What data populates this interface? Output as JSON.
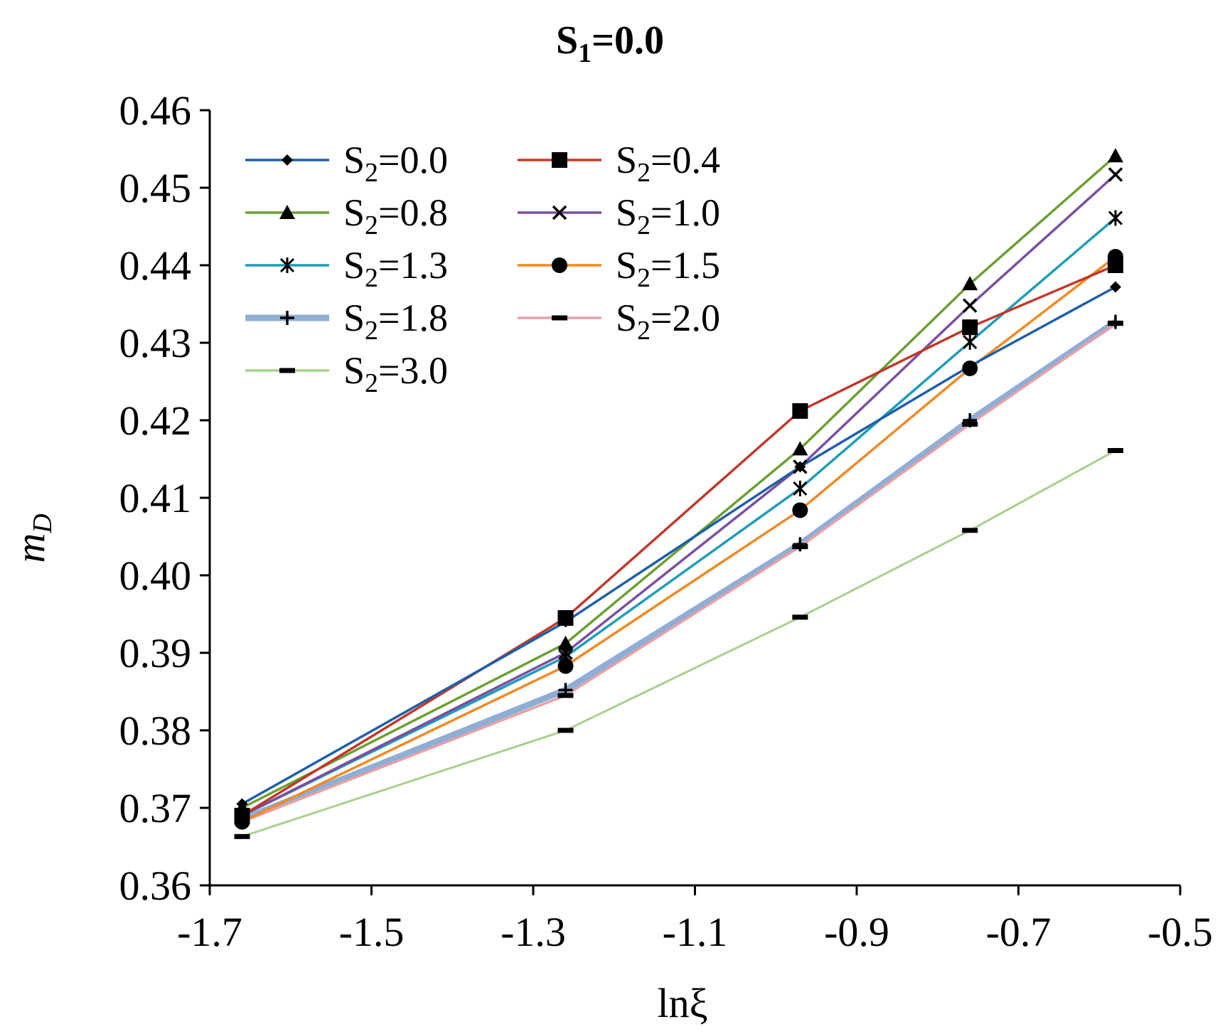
{
  "chart_data": {
    "type": "line",
    "title": {
      "main": "S",
      "sub": "1",
      "rest": "=0.0"
    },
    "xlabel": "lnξ",
    "ylabel": "m_D",
    "ylabel_main": "m",
    "ylabel_sub": "D",
    "xlim": [
      -1.7,
      -0.5
    ],
    "ylim": [
      0.36,
      0.46
    ],
    "xticks": [
      "-1.7",
      "-1.5",
      "-1.3",
      "-1.1",
      "-0.9",
      "-0.7",
      "-0.5"
    ],
    "xtick_values": [
      -1.7,
      -1.5,
      -1.3,
      -1.1,
      -0.9,
      -0.7,
      -0.5
    ],
    "yticks": [
      "0.36",
      "0.37",
      "0.38",
      "0.39",
      "0.40",
      "0.41",
      "0.42",
      "0.43",
      "0.44",
      "0.45",
      "0.46"
    ],
    "ytick_values": [
      0.36,
      0.37,
      0.38,
      0.39,
      0.4,
      0.41,
      0.42,
      0.43,
      0.44,
      0.45,
      0.46
    ],
    "grid": false,
    "legend_position": "top-left",
    "x": [
      -1.66,
      -1.26,
      -0.97,
      -0.76,
      -0.58
    ],
    "series": [
      {
        "name": "S2=0.0",
        "label_main": "S",
        "label_sub": "2",
        "label_rest": "=0.0",
        "color": "#1f5fa8",
        "marker": "diamond",
        "values": [
          0.3705,
          0.394,
          0.414,
          0.427,
          0.4372
        ]
      },
      {
        "name": "S2=0.4",
        "label_main": "S",
        "label_sub": "2",
        "label_rest": "=0.4",
        "color": "#c0392b",
        "marker": "square",
        "values": [
          0.369,
          0.3945,
          0.4212,
          0.432,
          0.44
        ]
      },
      {
        "name": "S2=0.8",
        "label_main": "S",
        "label_sub": "2",
        "label_rest": "=0.8",
        "color": "#6aa033",
        "marker": "triangle",
        "values": [
          0.37,
          0.3912,
          0.4163,
          0.4376,
          0.4541
        ]
      },
      {
        "name": "S2=1.0",
        "label_main": "S",
        "label_sub": "2",
        "label_rest": "=1.0",
        "color": "#7b4fa0",
        "marker": "x",
        "values": [
          0.369,
          0.39,
          0.414,
          0.4348,
          0.4517
        ]
      },
      {
        "name": "S2=1.3",
        "label_main": "S",
        "label_sub": "2",
        "label_rest": "=1.3",
        "color": "#1e9cb8",
        "marker": "asterisk",
        "values": [
          0.369,
          0.3895,
          0.4112,
          0.4301,
          0.4461
        ]
      },
      {
        "name": "S2=1.5",
        "label_main": "S",
        "label_sub": "2",
        "label_rest": "=1.5",
        "color": "#f08a24",
        "marker": "circle",
        "values": [
          0.3682,
          0.3883,
          0.4084,
          0.4267,
          0.4411
        ]
      },
      {
        "name": "S2=1.8",
        "label_main": "S",
        "label_sub": "2",
        "label_rest": "=1.8",
        "color": "#8faed6",
        "marker": "plus",
        "values": [
          0.3685,
          0.3852,
          0.404,
          0.42,
          0.4327
        ]
      },
      {
        "name": "S2=2.0",
        "label_main": "S",
        "label_sub": "2",
        "label_rest": "=2.0",
        "color": "#e8a0a4",
        "marker": "dash",
        "values": [
          0.3682,
          0.3845,
          0.4037,
          0.4195,
          0.4325
        ]
      },
      {
        "name": "S2=3.0",
        "label_main": "S",
        "label_sub": "2",
        "label_rest": "=3.0",
        "color": "#a8d08d",
        "marker": "dash",
        "values": [
          0.3663,
          0.38,
          0.3946,
          0.4058,
          0.4161
        ]
      }
    ]
  }
}
